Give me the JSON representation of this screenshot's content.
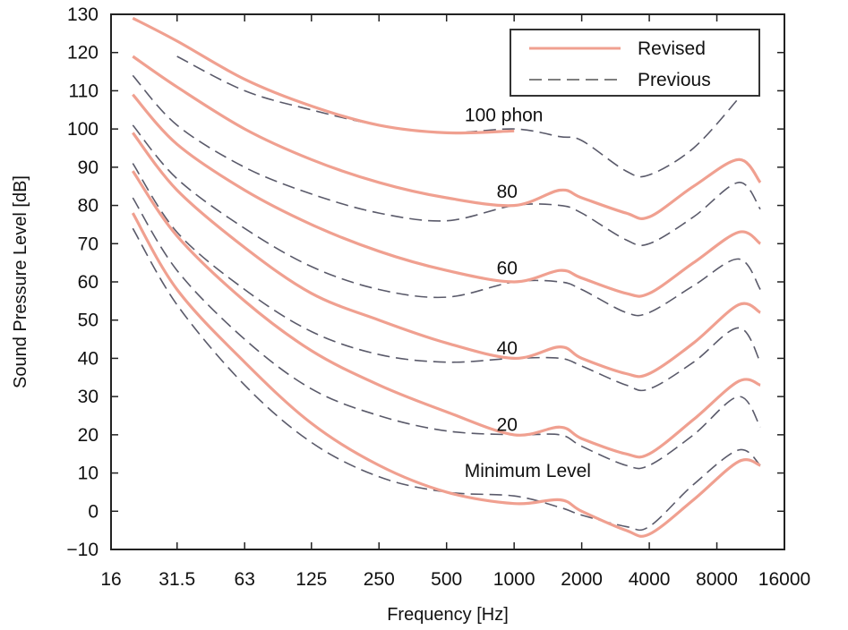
{
  "chart_data": {
    "type": "line",
    "title": "",
    "xlabel": "Frequency [Hz]",
    "ylabel": "Sound Pressure Level [dB]",
    "x_scale": "log",
    "x_ticks": [
      "16",
      "31.5",
      "63",
      "125",
      "250",
      "500",
      "1000",
      "2000",
      "4000",
      "8000",
      "16000"
    ],
    "x_tick_values": [
      16,
      31.5,
      63,
      125,
      250,
      500,
      1000,
      2000,
      4000,
      8000,
      16000
    ],
    "xlim": [
      16,
      16000
    ],
    "y_ticks": [
      "130",
      "120",
      "110",
      "100",
      "90",
      "80",
      "70",
      "60",
      "50",
      "40",
      "30",
      "20",
      "10",
      "0",
      "−10"
    ],
    "y_tick_values": [
      130,
      120,
      110,
      100,
      90,
      80,
      70,
      60,
      50,
      40,
      30,
      20,
      10,
      0,
      -10
    ],
    "ylim": [
      -10,
      130
    ],
    "grid": false,
    "legend": {
      "position": "top-right",
      "entries": [
        {
          "label": "Revised",
          "style": "solid",
          "color": "#f0a090"
        },
        {
          "label": "Previous",
          "style": "dashed",
          "color": "#555555"
        }
      ]
    },
    "annotations": [
      {
        "text": "100 phon",
        "x": 900,
        "y": 102
      },
      {
        "text": "80",
        "x": 930,
        "y": 82
      },
      {
        "text": "60",
        "x": 930,
        "y": 62
      },
      {
        "text": "40",
        "x": 930,
        "y": 41
      },
      {
        "text": "20",
        "x": 930,
        "y": 21
      },
      {
        "text": "Minimum Level",
        "x": 1150,
        "y": 9
      }
    ],
    "x": [
      20,
      31.5,
      63,
      125,
      250,
      500,
      1000,
      1600,
      2000,
      3150,
      4000,
      6300,
      10000,
      12500
    ],
    "series": [
      {
        "style": "revised",
        "values": [
          null,
          null,
          null,
          null,
          null,
          null,
          null,
          null,
          null,
          null,
          null,
          null,
          null,
          null
        ]
      },
      {
        "style": "revised",
        "values": [
          119,
          111,
          100,
          92,
          86,
          82,
          80,
          84,
          82,
          78,
          77,
          85,
          92,
          86
        ]
      },
      {
        "style": "revised",
        "values": [
          109,
          96,
          84,
          75,
          68,
          63,
          60,
          63,
          61,
          57,
          57,
          65,
          73,
          70
        ]
      },
      {
        "style": "revised",
        "values": [
          99,
          84,
          69,
          57,
          50,
          44,
          40,
          43,
          40,
          36,
          36,
          44,
          54,
          52
        ]
      },
      {
        "style": "revised",
        "values": [
          89,
          72,
          55,
          42,
          33,
          26,
          20,
          22,
          19,
          15,
          15,
          24,
          34,
          33
        ]
      },
      {
        "style": "revised",
        "values": [
          78,
          58,
          39,
          23,
          12,
          5,
          2,
          3,
          0,
          -5,
          -6,
          3,
          13,
          12
        ]
      },
      {
        "style": "previous",
        "values": [
          null,
          119,
          110,
          105,
          101,
          99,
          100,
          98,
          97,
          89,
          88,
          95,
          108,
          null
        ]
      },
      {
        "style": "previous",
        "values": [
          114,
          101,
          90,
          83,
          78,
          76,
          80,
          80,
          78,
          71,
          70,
          77,
          86,
          79
        ]
      },
      {
        "style": "previous",
        "values": [
          101,
          87,
          74,
          64,
          58,
          56,
          60,
          60,
          58,
          52,
          52,
          59,
          66,
          58
        ]
      },
      {
        "style": "previous",
        "values": [
          91,
          73,
          58,
          47,
          41,
          39,
          40,
          40,
          38,
          33,
          32,
          39,
          48,
          39
        ]
      },
      {
        "style": "previous",
        "values": [
          82,
          63,
          45,
          32,
          25,
          21,
          20,
          20,
          17,
          12,
          12,
          20,
          30,
          22
        ]
      },
      {
        "style": "previous",
        "values": [
          74,
          54,
          33,
          18,
          9,
          5,
          4,
          1,
          -1,
          -4,
          -4,
          7,
          16,
          12
        ]
      }
    ],
    "top_revised_curve": {
      "x": [
        20,
        31.5,
        63,
        125,
        250,
        500,
        1000
      ],
      "values": [
        129,
        123,
        113,
        106,
        101,
        99,
        99.5
      ]
    }
  }
}
